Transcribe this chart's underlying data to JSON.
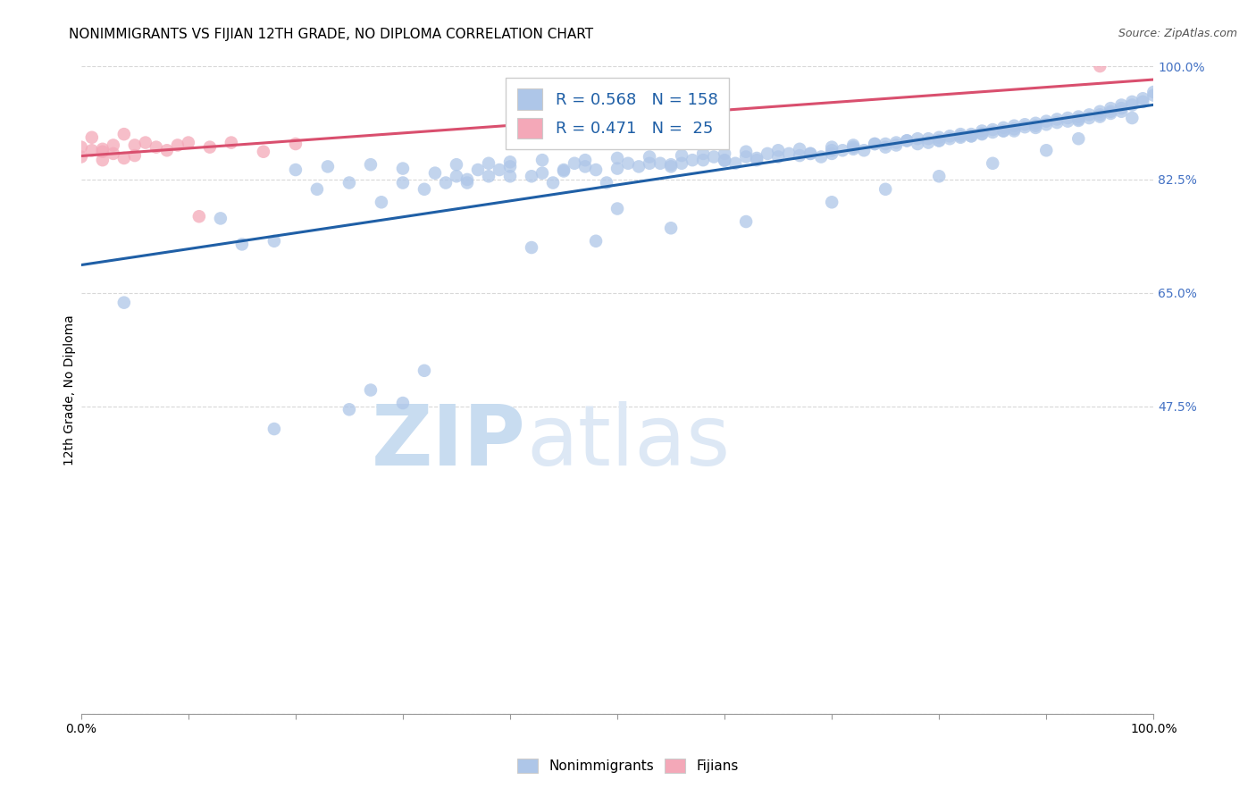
{
  "title": "NONIMMIGRANTS VS FIJIAN 12TH GRADE, NO DIPLOMA CORRELATION CHART",
  "source": "Source: ZipAtlas.com",
  "ylabel": "12th Grade, No Diploma",
  "xlabel": "",
  "xlim": [
    0.0,
    1.0
  ],
  "ylim": [
    0.0,
    1.0
  ],
  "yticks": [
    0.0,
    0.475,
    0.65,
    0.825,
    1.0
  ],
  "ytick_labels": [
    "",
    "47.5%",
    "65.0%",
    "82.5%",
    "100.0%"
  ],
  "blue_R": 0.568,
  "blue_N": 158,
  "pink_R": 0.471,
  "pink_N": 25,
  "blue_color": "#aec6e8",
  "pink_color": "#f4a8b8",
  "blue_line_color": "#1f5fa6",
  "pink_line_color": "#d94f6e",
  "blue_scatter_x": [
    0.04,
    0.13,
    0.15,
    0.18,
    0.22,
    0.25,
    0.28,
    0.3,
    0.32,
    0.33,
    0.34,
    0.35,
    0.36,
    0.37,
    0.38,
    0.39,
    0.4,
    0.42,
    0.43,
    0.44,
    0.45,
    0.46,
    0.47,
    0.48,
    0.49,
    0.5,
    0.51,
    0.52,
    0.53,
    0.54,
    0.55,
    0.56,
    0.57,
    0.58,
    0.59,
    0.6,
    0.61,
    0.62,
    0.63,
    0.64,
    0.65,
    0.66,
    0.67,
    0.68,
    0.69,
    0.7,
    0.7,
    0.71,
    0.72,
    0.73,
    0.74,
    0.75,
    0.75,
    0.76,
    0.77,
    0.78,
    0.78,
    0.79,
    0.8,
    0.8,
    0.81,
    0.81,
    0.82,
    0.82,
    0.83,
    0.83,
    0.84,
    0.84,
    0.85,
    0.85,
    0.86,
    0.86,
    0.87,
    0.87,
    0.88,
    0.88,
    0.89,
    0.89,
    0.9,
    0.9,
    0.91,
    0.91,
    0.92,
    0.92,
    0.93,
    0.93,
    0.93,
    0.94,
    0.94,
    0.95,
    0.95,
    0.95,
    0.96,
    0.96,
    0.96,
    0.97,
    0.97,
    0.97,
    0.98,
    0.98,
    0.99,
    0.99,
    1.0,
    1.0,
    0.2,
    0.23,
    0.27,
    0.3,
    0.35,
    0.38,
    0.4,
    0.43,
    0.47,
    0.5,
    0.53,
    0.56,
    0.58,
    0.6,
    0.62,
    0.65,
    0.67,
    0.7,
    0.72,
    0.74,
    0.77,
    0.79,
    0.82,
    0.84,
    0.87,
    0.89,
    0.36,
    0.4,
    0.45,
    0.5,
    0.55,
    0.6,
    0.63,
    0.68,
    0.72,
    0.76,
    0.8,
    0.83,
    0.86,
    0.42,
    0.48,
    0.55,
    0.62,
    0.7,
    0.75,
    0.8,
    0.85,
    0.9,
    0.93,
    0.27,
    0.32,
    0.18,
    0.25,
    0.3,
    0.98
  ],
  "blue_scatter_y": [
    0.635,
    0.765,
    0.725,
    0.73,
    0.81,
    0.82,
    0.79,
    0.82,
    0.81,
    0.835,
    0.82,
    0.83,
    0.825,
    0.84,
    0.83,
    0.84,
    0.845,
    0.83,
    0.835,
    0.82,
    0.84,
    0.85,
    0.845,
    0.84,
    0.82,
    0.78,
    0.85,
    0.845,
    0.85,
    0.85,
    0.845,
    0.85,
    0.855,
    0.855,
    0.86,
    0.855,
    0.85,
    0.86,
    0.855,
    0.865,
    0.86,
    0.865,
    0.862,
    0.865,
    0.86,
    0.87,
    0.865,
    0.87,
    0.875,
    0.87,
    0.88,
    0.875,
    0.88,
    0.882,
    0.885,
    0.88,
    0.888,
    0.882,
    0.89,
    0.885,
    0.892,
    0.888,
    0.895,
    0.89,
    0.895,
    0.892,
    0.9,
    0.895,
    0.902,
    0.898,
    0.905,
    0.9,
    0.908,
    0.903,
    0.91,
    0.906,
    0.912,
    0.908,
    0.915,
    0.91,
    0.918,
    0.913,
    0.92,
    0.915,
    0.922,
    0.918,
    0.916,
    0.925,
    0.92,
    0.93,
    0.925,
    0.922,
    0.935,
    0.93,
    0.927,
    0.94,
    0.935,
    0.93,
    0.945,
    0.94,
    0.95,
    0.945,
    0.96,
    0.955,
    0.84,
    0.845,
    0.848,
    0.842,
    0.848,
    0.85,
    0.852,
    0.855,
    0.855,
    0.858,
    0.86,
    0.862,
    0.865,
    0.865,
    0.868,
    0.87,
    0.872,
    0.875,
    0.878,
    0.88,
    0.885,
    0.888,
    0.892,
    0.896,
    0.9,
    0.905,
    0.82,
    0.83,
    0.838,
    0.842,
    0.848,
    0.854,
    0.858,
    0.865,
    0.872,
    0.878,
    0.885,
    0.892,
    0.9,
    0.72,
    0.73,
    0.75,
    0.76,
    0.79,
    0.81,
    0.83,
    0.85,
    0.87,
    0.888,
    0.5,
    0.53,
    0.44,
    0.47,
    0.48,
    0.92
  ],
  "pink_scatter_x": [
    0.0,
    0.0,
    0.01,
    0.01,
    0.02,
    0.02,
    0.02,
    0.03,
    0.03,
    0.04,
    0.04,
    0.05,
    0.05,
    0.06,
    0.07,
    0.08,
    0.09,
    0.1,
    0.11,
    0.12,
    0.14,
    0.17,
    0.2,
    0.53,
    0.95
  ],
  "pink_scatter_y": [
    0.86,
    0.875,
    0.87,
    0.89,
    0.868,
    0.855,
    0.872,
    0.865,
    0.878,
    0.858,
    0.895,
    0.862,
    0.878,
    0.882,
    0.875,
    0.87,
    0.878,
    0.882,
    0.768,
    0.875,
    0.882,
    0.868,
    0.88,
    0.895,
    1.0
  ],
  "watermark_zip": "ZIP",
  "watermark_atlas": "atlas",
  "watermark_color": "#ccdff5",
  "title_fontsize": 11,
  "axis_label_fontsize": 10,
  "tick_fontsize": 10,
  "right_tick_color": "#4472c4",
  "grid_color": "#d8d8d8"
}
